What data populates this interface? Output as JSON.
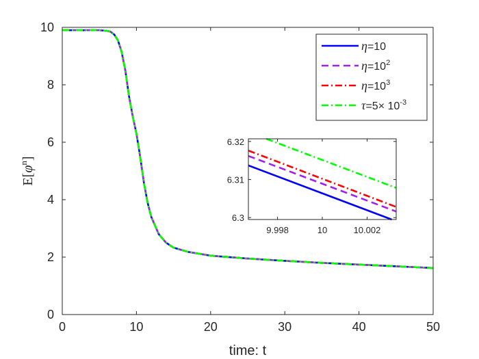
{
  "chart_data": {
    "type": "line",
    "xlabel": "time: t",
    "ylabel": "E[φⁿ]",
    "xlim": [
      0,
      50
    ],
    "ylim": [
      0,
      10
    ],
    "xticks": [
      "0",
      "10",
      "20",
      "30",
      "40",
      "50"
    ],
    "yticks": [
      "0",
      "2",
      "4",
      "6",
      "8",
      "10"
    ],
    "grid": false,
    "legend_position": "top-right",
    "curve": [
      [
        0,
        9.9
      ],
      [
        5,
        9.9
      ],
      [
        6,
        9.88
      ],
      [
        6.5,
        9.85
      ],
      [
        7,
        9.75
      ],
      [
        7.5,
        9.55
      ],
      [
        8,
        9.15
      ],
      [
        8.5,
        8.5
      ],
      [
        9,
        7.6
      ],
      [
        9.5,
        6.9
      ],
      [
        10,
        6.3
      ],
      [
        10.5,
        5.5
      ],
      [
        11,
        4.6
      ],
      [
        11.5,
        3.9
      ],
      [
        12,
        3.4
      ],
      [
        13,
        2.8
      ],
      [
        14,
        2.5
      ],
      [
        15,
        2.33
      ],
      [
        17,
        2.18
      ],
      [
        20,
        2.05
      ],
      [
        25,
        1.95
      ],
      [
        30,
        1.87
      ],
      [
        35,
        1.8
      ],
      [
        40,
        1.74
      ],
      [
        45,
        1.68
      ],
      [
        50,
        1.62
      ]
    ],
    "series": [
      {
        "name": "η=10",
        "color": "#0000ff",
        "dash": "solid"
      },
      {
        "name": "η=10²",
        "color": "#a020f0",
        "dash": "dashed"
      },
      {
        "name": "η=10³",
        "color": "#ff0000",
        "dash": "dashdot"
      },
      {
        "name": "τ=5× 10⁻³",
        "color": "#00ff00",
        "dash": "dashdot"
      }
    ],
    "legend": [
      {
        "math": "η",
        "text": "=10"
      },
      {
        "math": "η",
        "text": "=10",
        "sup": "2"
      },
      {
        "math": "η",
        "text": "=10",
        "sup": "3"
      },
      {
        "math": "τ",
        "text": "=5× 10",
        "sup": "-3"
      }
    ],
    "inset": {
      "xlim": [
        9.9967,
        10.0033
      ],
      "ylim": [
        6.2995,
        6.3207
      ],
      "xticks": [
        {
          "v": 9.998,
          "label": "9.998"
        },
        {
          "v": 10,
          "label": "10"
        },
        {
          "v": 10.002,
          "label": "10.002"
        }
      ],
      "yticks": [
        {
          "v": 6.3,
          "label": "6.3"
        },
        {
          "v": 6.31,
          "label": "6.31"
        },
        {
          "v": 6.32,
          "label": "6.32"
        }
      ],
      "lines": [
        {
          "series": 0,
          "x": [
            9.9967,
            10.0031
          ],
          "y": [
            6.3137,
            6.2995
          ]
        },
        {
          "series": 1,
          "x": [
            9.9967,
            10.0033
          ],
          "y": [
            6.3162,
            6.3016
          ]
        },
        {
          "series": 2,
          "x": [
            9.9967,
            10.0033
          ],
          "y": [
            6.3176,
            6.3028
          ]
        },
        {
          "series": 3,
          "x": [
            9.9975,
            10.0033
          ],
          "y": [
            6.3207,
            6.3078
          ]
        }
      ]
    }
  }
}
